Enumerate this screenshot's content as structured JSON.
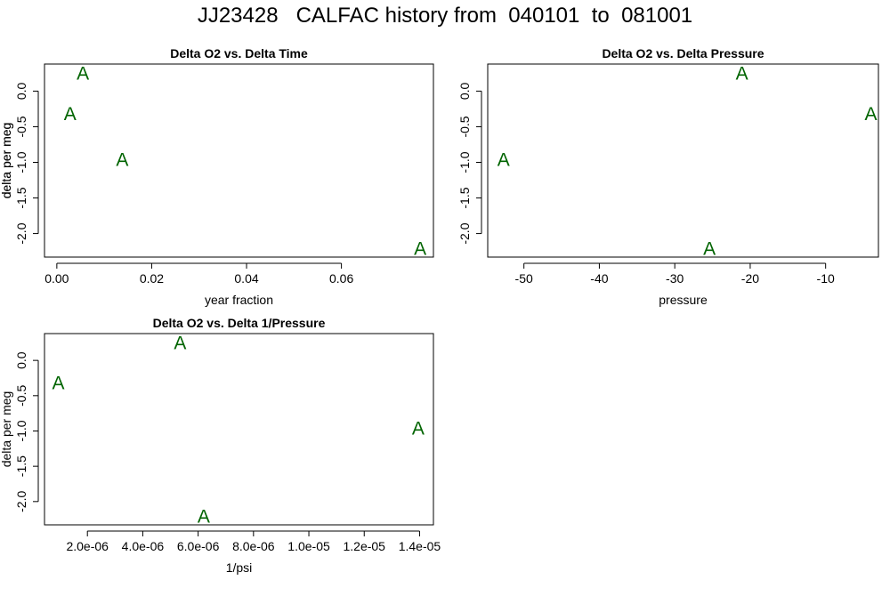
{
  "page": {
    "title": "JJ23428   CALFAC history from  040101  to  081001"
  },
  "colors": {
    "points": "#006400",
    "axes": "#000000"
  },
  "chart_data": [
    {
      "type": "scatter",
      "title": "Delta O2 vs. Delta Time",
      "xlabel": "year fraction",
      "ylabel": "delta per meg",
      "xlim": [
        -0.0026,
        0.0794
      ],
      "ylim": [
        -2.33,
        0.38
      ],
      "xticks": [
        0.0,
        0.02,
        0.04,
        0.06
      ],
      "xtick_labels": [
        "0.00",
        "0.02",
        "0.04",
        "0.06"
      ],
      "yticks": [
        0.0,
        -0.5,
        -1.0,
        -1.5,
        -2.0
      ],
      "ytick_labels": [
        "0.0",
        "-0.5",
        "-1.0",
        "-1.5",
        "-2.0"
      ],
      "marker": "A",
      "points": [
        {
          "x": 0.0055,
          "y": 0.25
        },
        {
          "x": 0.0028,
          "y": -0.32
        },
        {
          "x": 0.0138,
          "y": -0.96
        },
        {
          "x": 0.0766,
          "y": -2.21
        }
      ]
    },
    {
      "type": "scatter",
      "title": "Delta O2 vs. Delta Pressure",
      "xlabel": "pressure",
      "ylabel": "delta per meg",
      "xlim": [
        -54.8,
        -3.0
      ],
      "ylim": [
        -2.33,
        0.38
      ],
      "xticks": [
        -50,
        -40,
        -30,
        -20,
        -10
      ],
      "xtick_labels": [
        "-50",
        "-40",
        "-30",
        "-20",
        "-10"
      ],
      "yticks": [
        0.0,
        -0.5,
        -1.0,
        -1.5,
        -2.0
      ],
      "ytick_labels": [
        "0.0",
        "-0.5",
        "-1.0",
        "-1.5",
        "-2.0"
      ],
      "marker": "A",
      "points": [
        {
          "x": -21.1,
          "y": 0.25
        },
        {
          "x": -4.0,
          "y": -0.32
        },
        {
          "x": -52.7,
          "y": -0.96
        },
        {
          "x": -25.4,
          "y": -2.21
        }
      ]
    },
    {
      "type": "scatter",
      "title": "Delta O2 vs. Delta 1/Pressure",
      "xlabel": "1/psi",
      "ylabel": "delta per meg",
      "xlim": [
        4.5e-07,
        1.45e-05
      ],
      "ylim": [
        -2.33,
        0.38
      ],
      "xticks": [
        2e-06,
        4e-06,
        6e-06,
        8e-06,
        1e-05,
        1.2e-05,
        1.4e-05
      ],
      "xtick_labels": [
        "2.0e-06",
        "4.0e-06",
        "6.0e-06",
        "8.0e-06",
        "1.0e-05",
        "1.2e-05",
        "1.4e-05"
      ],
      "yticks": [
        0.0,
        -0.5,
        -1.0,
        -1.5,
        -2.0
      ],
      "ytick_labels": [
        "0.0",
        "-0.5",
        "-1.0",
        "-1.5",
        "-2.0"
      ],
      "marker": "A",
      "points": [
        {
          "x": 5.35e-06,
          "y": 0.25
        },
        {
          "x": 9.5e-07,
          "y": -0.32
        },
        {
          "x": 1.395e-05,
          "y": -0.96
        },
        {
          "x": 6.2e-06,
          "y": -2.21
        }
      ]
    }
  ]
}
